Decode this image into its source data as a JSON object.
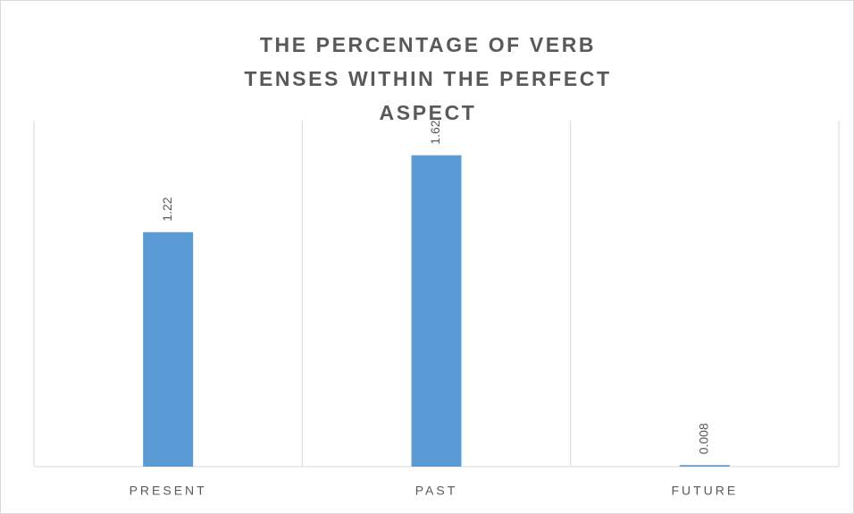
{
  "chart_data": {
    "type": "bar",
    "title": "THE PERCENTAGE OF VERB TENSES WITHIN THE PERFECT ASPECT",
    "categories": [
      "PRESENT",
      "PAST",
      "FUTURE"
    ],
    "values": [
      1.22,
      1.62,
      0.008
    ],
    "color": "#5b9bd5",
    "ylim": [
      0,
      1.8
    ]
  }
}
